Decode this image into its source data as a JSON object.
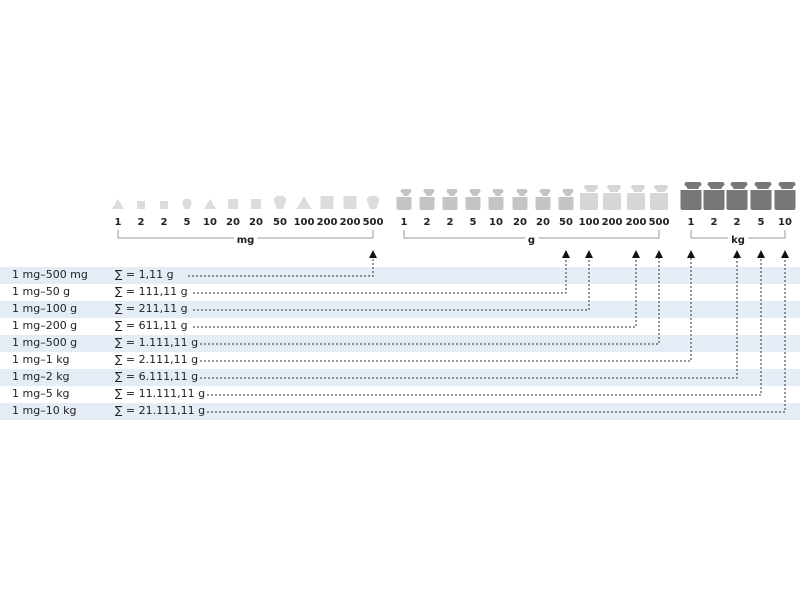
{
  "groups": [
    {
      "unit": "mg",
      "values": [
        "1",
        "2",
        "2",
        "5",
        "10",
        "20",
        "20",
        "50",
        "100",
        "200",
        "200",
        "500"
      ],
      "shapes": [
        "triangle",
        "square",
        "square",
        "pentagon",
        "triangle",
        "square",
        "square",
        "hexagon",
        "triangle",
        "square",
        "square",
        "pentagon"
      ],
      "color": "#dcdcdc"
    },
    {
      "unit": "g",
      "values": [
        "1",
        "2",
        "2",
        "5",
        "10",
        "20",
        "20",
        "50",
        "100",
        "200",
        "200",
        "500"
      ],
      "color": "#c4c4c4",
      "color_large": "#d6d6d6"
    },
    {
      "unit": "kg",
      "values": [
        "1",
        "2",
        "2",
        "5",
        "10"
      ],
      "color": "#777777"
    }
  ],
  "rows": [
    {
      "range": "1 mg–500 mg",
      "sum": "∑ = 1,11 g",
      "target": "mg 500"
    },
    {
      "range": "1 mg–50 g",
      "sum": "∑ = 111,11 g",
      "target": "g 50"
    },
    {
      "range": "1 mg–100 g",
      "sum": "∑ = 211,11 g",
      "target": "g 100"
    },
    {
      "range": "1 mg–200 g",
      "sum": "∑ = 611,11 g",
      "target": "g 200"
    },
    {
      "range": "1 mg–500 g",
      "sum": "∑ = 1.111,11 g",
      "target": "g 500"
    },
    {
      "range": "1 mg–1 kg",
      "sum": "∑ = 2.111,11 g",
      "target": "kg 1"
    },
    {
      "range": "1 mg–2 kg",
      "sum": "∑ = 6.111,11 g",
      "target": "kg 2"
    },
    {
      "range": "1 mg–5 kg",
      "sum": "∑ = 11.111,11 g",
      "target": "kg 5"
    },
    {
      "range": "1 mg–10 kg",
      "sum": "∑ = 21.111,11 g",
      "target": "kg 10"
    }
  ],
  "row_color": "#e4edf5"
}
